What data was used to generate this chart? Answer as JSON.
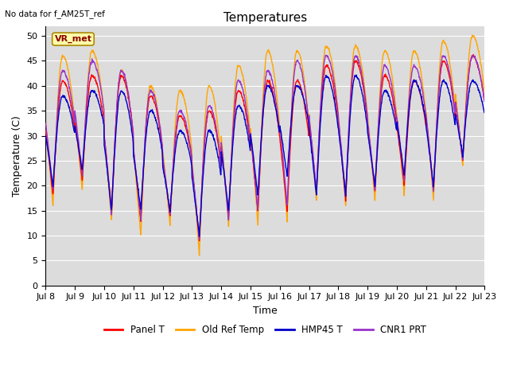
{
  "title": "Temperatures",
  "xlabel": "Time",
  "ylabel": "Temperature (C)",
  "bg_color": "#dcdcdc",
  "fig_bg_color": "#ffffff",
  "ylim": [
    0,
    52
  ],
  "yticks": [
    0,
    5,
    10,
    15,
    20,
    25,
    30,
    35,
    40,
    45,
    50
  ],
  "start_day": 8,
  "end_day": 23,
  "num_points": 1440,
  "legend_labels": [
    "Panel T",
    "Old Ref Temp",
    "HMP45 T",
    "CNR1 PRT"
  ],
  "legend_colors": [
    "#ff0000",
    "#ffa500",
    "#0000cc",
    "#9933cc"
  ],
  "note_text": "No data for f_AM25T_ref",
  "vr_met_label": "VR_met",
  "grid_color": "#ffffff",
  "axis_label_fontsize": 9,
  "title_fontsize": 11,
  "tick_fontsize": 8
}
